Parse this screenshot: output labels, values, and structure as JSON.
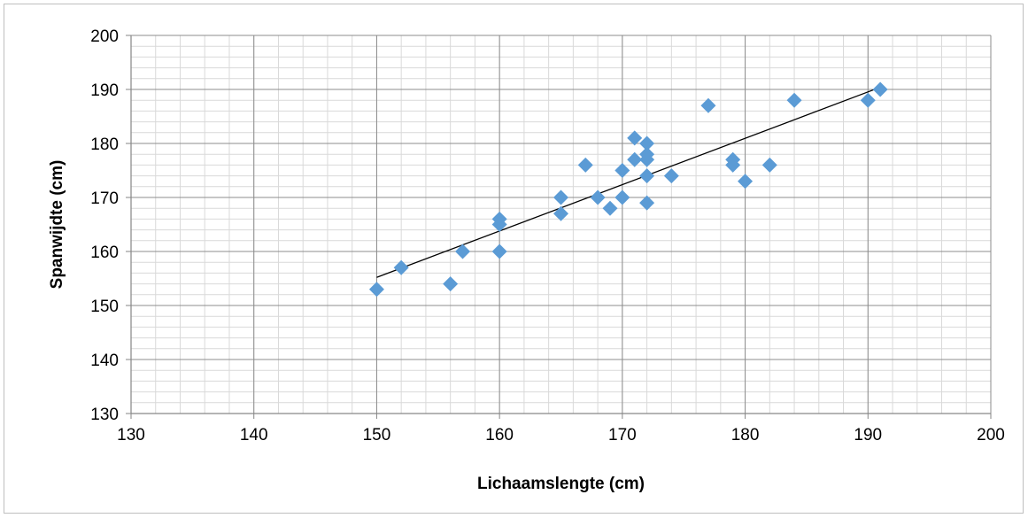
{
  "chart_data": {
    "type": "scatter",
    "title": "",
    "xlabel": "Lichaamslengte (cm)",
    "ylabel": "Spanwijdte (cm)",
    "xlim": [
      130,
      200
    ],
    "ylim": [
      130,
      200
    ],
    "x_major_ticks": [
      130,
      140,
      150,
      160,
      170,
      180,
      190,
      200
    ],
    "y_major_ticks": [
      130,
      140,
      150,
      160,
      170,
      180,
      190,
      200
    ],
    "x_tick_labels": [
      "130",
      "140",
      "150",
      "160",
      "170",
      "180",
      "190",
      "200"
    ],
    "y_tick_labels": [
      "130",
      "140",
      "150",
      "160",
      "170",
      "180",
      "190",
      "200"
    ],
    "x_minor_step": 2,
    "y_minor_step": 2,
    "grid": true,
    "legend": "none",
    "marker_color": "#5b9bd5",
    "marker_shape": "diamond",
    "trendline": {
      "type": "linear",
      "x": [
        150,
        191
      ],
      "y": [
        155.2,
        190.4
      ],
      "color": "#000000"
    },
    "series": [
      {
        "points": [
          [
            150,
            153
          ],
          [
            152,
            157
          ],
          [
            156,
            154
          ],
          [
            157,
            160
          ],
          [
            160,
            160
          ],
          [
            160,
            165
          ],
          [
            160,
            166
          ],
          [
            165,
            167
          ],
          [
            165,
            170
          ],
          [
            167,
            176
          ],
          [
            168,
            170
          ],
          [
            169,
            168
          ],
          [
            170,
            170
          ],
          [
            170,
            175
          ],
          [
            171,
            177
          ],
          [
            171,
            181
          ],
          [
            172,
            169
          ],
          [
            172,
            174
          ],
          [
            172,
            177
          ],
          [
            172,
            178
          ],
          [
            172,
            180
          ],
          [
            174,
            174
          ],
          [
            177,
            187
          ],
          [
            179,
            176
          ],
          [
            179,
            177
          ],
          [
            180,
            173
          ],
          [
            182,
            176
          ],
          [
            184,
            188
          ],
          [
            190,
            188
          ],
          [
            191,
            190
          ]
        ]
      }
    ]
  }
}
